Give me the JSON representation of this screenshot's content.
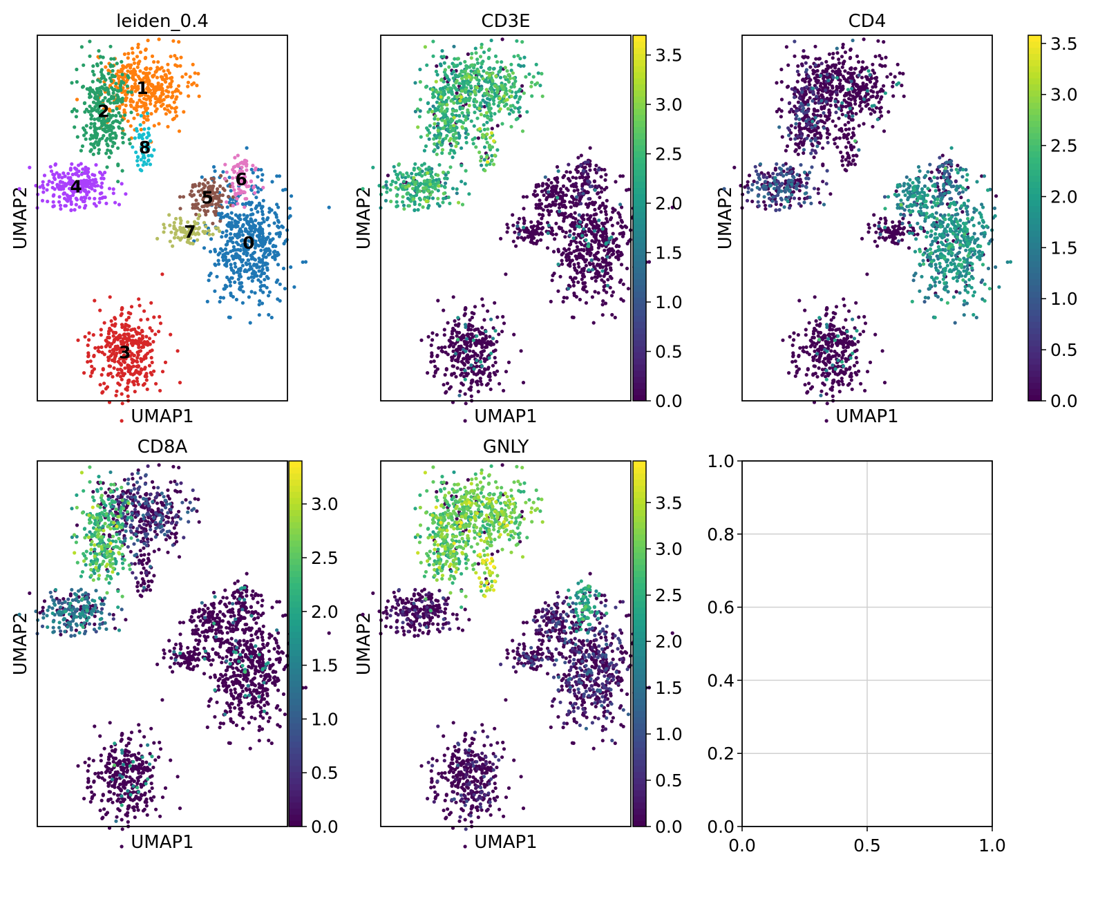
{
  "chart_data": {
    "type": "scatter",
    "embedding": "UMAP",
    "xlabel": "UMAP1",
    "ylabel": "UMAP2",
    "umap_xlim": [
      0,
      10
    ],
    "umap_ylim": [
      0,
      15
    ],
    "clusters": [
      {
        "id": "0",
        "color": "#1f77b4",
        "center": [
          8.45,
          6.5
        ],
        "spread": [
          0.75,
          1.35
        ],
        "n": 520
      },
      {
        "id": "1",
        "color": "#ff7f0e",
        "center": [
          4.2,
          12.85
        ],
        "spread": [
          0.85,
          0.75
        ],
        "n": 380
      },
      {
        "id": "2",
        "color": "#279e68",
        "center": [
          2.65,
          11.9
        ],
        "spread": [
          0.5,
          1.0
        ],
        "n": 300
      },
      {
        "id": "3",
        "color": "#d62728",
        "center": [
          3.5,
          2.0
        ],
        "spread": [
          0.7,
          0.9
        ],
        "n": 330
      },
      {
        "id": "4",
        "color": "#aa40fc",
        "center": [
          1.55,
          8.8
        ],
        "spread": [
          0.75,
          0.45
        ],
        "n": 240
      },
      {
        "id": "5",
        "color": "#8c564b",
        "center": [
          6.8,
          8.35
        ],
        "spread": [
          0.45,
          0.4
        ],
        "n": 120
      },
      {
        "id": "6",
        "color": "#e377c2",
        "center": [
          8.15,
          9.1
        ],
        "spread": [
          0.3,
          0.5
        ],
        "n": 80
      },
      {
        "id": "7",
        "color": "#b5bd61",
        "center": [
          6.1,
          6.95
        ],
        "spread": [
          0.6,
          0.25
        ],
        "n": 90
      },
      {
        "id": "8",
        "color": "#17becf",
        "center": [
          4.3,
          10.4
        ],
        "spread": [
          0.2,
          0.6
        ],
        "n": 50
      }
    ],
    "panels": [
      {
        "title": "leiden_0.4",
        "color_by": "cluster",
        "show_cluster_labels": true
      },
      {
        "title": "CD3E",
        "color_by": "expression",
        "colormap": "viridis",
        "vmin": 0,
        "vmax": 3.7,
        "colorbar_ticks": [
          "0.0",
          "0.5",
          "1.0",
          "1.5",
          "2.0",
          "2.5",
          "3.0",
          "3.5"
        ],
        "cluster_mean": {
          "0": 0.05,
          "1": 2.4,
          "2": 2.3,
          "3": 0.05,
          "4": 2.3,
          "5": 0.1,
          "6": 0.3,
          "7": 0.05,
          "8": 2.6
        }
      },
      {
        "title": "CD4",
        "color_by": "expression",
        "colormap": "viridis",
        "vmin": 0,
        "vmax": 3.58,
        "colorbar_ticks": [
          "0.0",
          "0.5",
          "1.0",
          "1.5",
          "2.0",
          "2.5",
          "3.0",
          "3.5"
        ],
        "cluster_mean": {
          "0": 1.75,
          "1": 0.05,
          "2": 0.5,
          "3": 0.05,
          "4": 0.9,
          "5": 1.7,
          "6": 1.0,
          "7": 0.1,
          "8": 0.05
        }
      },
      {
        "title": "CD8A",
        "color_by": "expression",
        "colormap": "viridis",
        "vmin": 0,
        "vmax": 3.4,
        "colorbar_ticks": [
          "0.0",
          "0.5",
          "1.0",
          "1.5",
          "2.0",
          "2.5",
          "3.0"
        ],
        "cluster_mean": {
          "0": 0.05,
          "1": 0.7,
          "2": 2.3,
          "3": 0.05,
          "4": 1.3,
          "5": 0.05,
          "6": 0.05,
          "7": 0.1,
          "8": 0.3
        }
      },
      {
        "title": "GNLY",
        "color_by": "expression",
        "colormap": "viridis",
        "vmin": 0,
        "vmax": 3.95,
        "colorbar_ticks": [
          "0.0",
          "0.5",
          "1.0",
          "1.5",
          "2.0",
          "2.5",
          "3.0",
          "3.5"
        ],
        "cluster_mean": {
          "0": 0.6,
          "1": 3.0,
          "2": 2.9,
          "3": 0.3,
          "4": 0.3,
          "5": 0.5,
          "6": 2.3,
          "7": 0.6,
          "8": 3.5
        }
      },
      {
        "title": "",
        "color_by": "none",
        "empty": true,
        "xticks": [
          "0.0",
          "0.5",
          "1.0"
        ],
        "yticks": [
          "0.0",
          "0.2",
          "0.4",
          "0.6",
          "0.8",
          "1.0"
        ],
        "xlim": [
          0,
          1
        ],
        "ylim": [
          0,
          1
        ],
        "grid": true
      }
    ]
  }
}
